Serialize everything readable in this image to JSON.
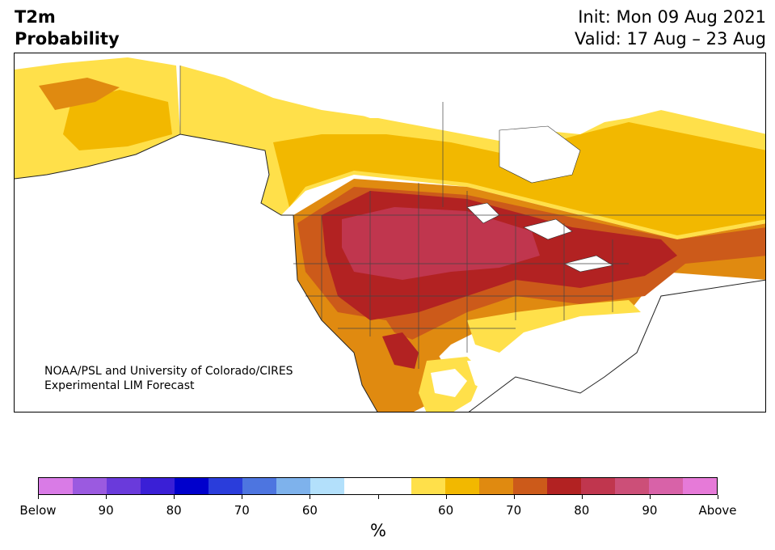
{
  "header": {
    "variable": "T2m",
    "product": "Probability",
    "init": "Init: Mon 09 Aug 2021",
    "valid": "Valid: 17 Aug – 23 Aug"
  },
  "credit": {
    "line1": "NOAA/PSL and University of Colorado/CIRES",
    "line2": "Experimental LIM Forecast"
  },
  "colorbar": {
    "unit": "%",
    "colors": [
      "#d97be6",
      "#9b5ae0",
      "#6a3adb",
      "#3a1fd6",
      "#0000cc",
      "#2a3ddb",
      "#4d75e0",
      "#7eb2ec",
      "#b3e0fb",
      "#ffffff",
      "#ffffff",
      "#ffe04a",
      "#f2b800",
      "#e08a10",
      "#cc5a1a",
      "#b22222",
      "#c0364e",
      "#cc4f78",
      "#d862a8",
      "#e67ad8"
    ],
    "ticks": [
      "Below",
      "90",
      "80",
      "70",
      "60",
      "",
      "60",
      "70",
      "80",
      "90",
      "Above"
    ]
  },
  "map_legend_colors": {
    "above_60": "#ffe04a",
    "above_65": "#f2b800",
    "above_70": "#e08a10",
    "above_75": "#cc5a1a",
    "above_80": "#b22222",
    "above_85": "#c0364e",
    "below_60": "#b3e0fb"
  }
}
